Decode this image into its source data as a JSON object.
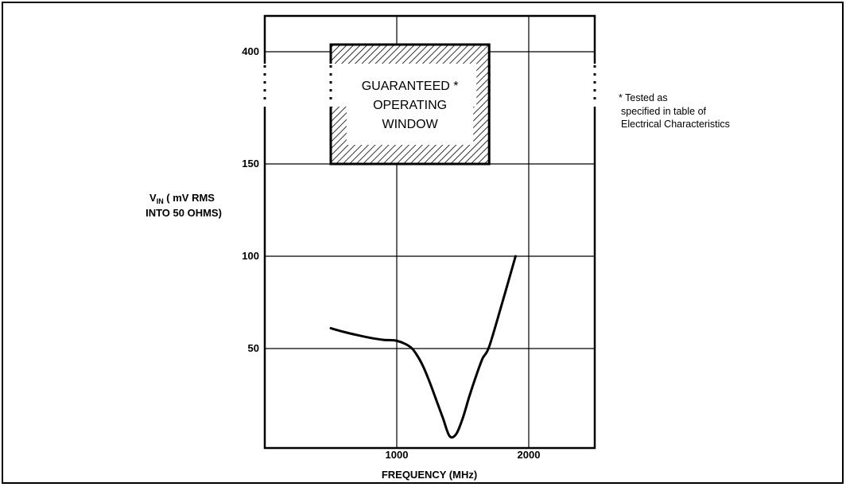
{
  "chart_data": {
    "type": "line",
    "xlabel": "FREQUENCY (MHz)",
    "ylabel_main": "V",
    "ylabel_sub": "IN",
    "ylabel_rest": " ( mV RMS",
    "ylabel_line2": "INTO 50 OHMS)",
    "x_ticks": [
      {
        "value": 1000,
        "label": "1000"
      },
      {
        "value": 2000,
        "label": "2000"
      }
    ],
    "y_ticks": [
      {
        "value": 50,
        "label": "50"
      },
      {
        "value": 100,
        "label": "100"
      },
      {
        "value": 150,
        "label": "150"
      },
      {
        "value": 400,
        "label": "400"
      }
    ],
    "x_range": [
      0,
      2500
    ],
    "grid": true,
    "window": {
      "x_range": [
        500,
        1700
      ],
      "y_range": [
        150,
        400
      ],
      "lines": [
        "GUARANTEED *",
        "OPERATING",
        "WINDOW"
      ]
    },
    "footnote": [
      "* Tested as",
      "specified in table of",
      "Electrical Characteristics"
    ],
    "series": [
      {
        "x": [
          500,
          600,
          700,
          800,
          900,
          1000,
          1100,
          1150,
          1200,
          1250,
          1300,
          1350,
          1400,
          1450,
          1500,
          1550,
          1600,
          1650,
          1700,
          1800,
          1900
        ],
        "y": [
          61,
          59,
          57.3,
          55.8,
          54.7,
          54.2,
          51,
          47,
          41,
          33,
          24,
          15,
          6,
          7,
          15,
          26,
          36,
          45,
          51,
          75,
          100
        ]
      }
    ]
  }
}
